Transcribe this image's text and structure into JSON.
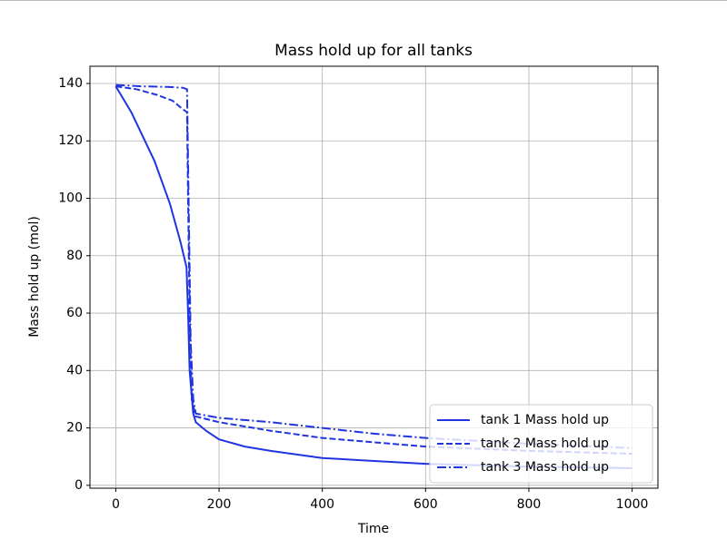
{
  "chart_data": {
    "type": "line",
    "title": "Mass hold up for all tanks",
    "x_label": "Time",
    "y_label": "Mass hold up (mol)",
    "xlim": [
      -50,
      1050
    ],
    "ylim": [
      -1,
      146
    ],
    "xticks": [
      0,
      200,
      400,
      600,
      800,
      1000
    ],
    "yticks": [
      0,
      20,
      40,
      60,
      80,
      100,
      120,
      140
    ],
    "grid": true,
    "legend": "lower right",
    "series": [
      {
        "name": "tank 1 Mass hold up",
        "color": "#2035e0",
        "dash": "solid",
        "x": [
          0,
          30,
          75,
          105,
          125,
          137,
          140,
          143,
          150,
          155,
          175,
          200,
          250,
          300,
          400,
          500,
          600,
          800,
          1000
        ],
        "values": [
          139,
          130,
          113,
          98,
          85,
          76,
          60,
          40,
          25,
          22,
          19,
          16,
          13.5,
          12,
          9.5,
          8.5,
          7.5,
          6.5,
          6
        ]
      },
      {
        "name": "tank 2 Mass hold up",
        "color": "#2035e0",
        "dash": "dashed",
        "x": [
          0,
          40,
          80,
          110,
          130,
          138,
          140,
          143,
          147,
          155,
          200,
          300,
          400,
          500,
          600,
          800,
          1000
        ],
        "values": [
          139,
          138,
          136,
          134,
          131,
          130,
          100,
          60,
          30,
          24,
          22,
          19,
          16.5,
          15,
          13.5,
          12,
          11
        ]
      },
      {
        "name": "tank 3 Mass hold up",
        "color": "#2035e0",
        "dash": "dashdot",
        "x": [
          0,
          50,
          100,
          130,
          138,
          141,
          145,
          150,
          155,
          200,
          300,
          400,
          500,
          600,
          800,
          1000
        ],
        "values": [
          139.5,
          139,
          138.8,
          138.5,
          138,
          100,
          50,
          30,
          25,
          23.5,
          22,
          20,
          18,
          16.5,
          14.5,
          13
        ]
      }
    ]
  }
}
